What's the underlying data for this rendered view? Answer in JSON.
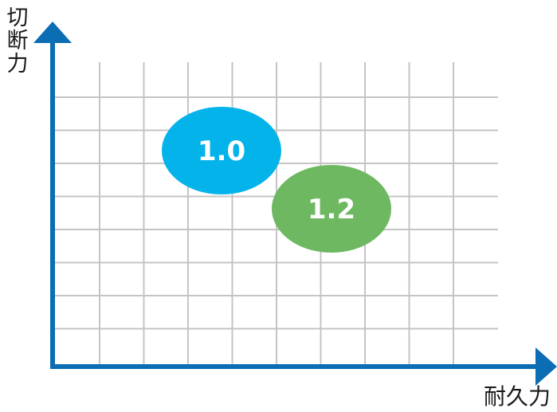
{
  "axes": {
    "y_label": "切断力",
    "x_label": "耐久力",
    "color": "#0b6db4"
  },
  "grid": {
    "color": "#c4c4c4",
    "columns": 9,
    "rows": 8
  },
  "bubbles": [
    {
      "label": "1.0",
      "color": "#04b3ea"
    },
    {
      "label": "1.2",
      "color": "#6eb862"
    }
  ]
}
